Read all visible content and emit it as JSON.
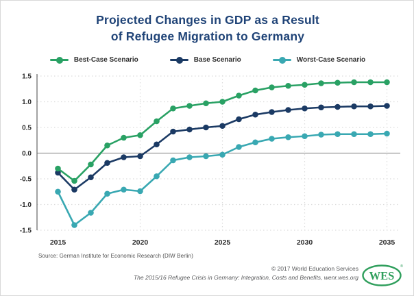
{
  "title": {
    "line1": "Projected Changes in GDP as a Result",
    "line2": "of Refugee Migration to Germany"
  },
  "chart_data": {
    "type": "line",
    "title": "Projected Changes in GDP as a Result of Refugee Migration to Germany",
    "x": [
      2015,
      2016,
      2017,
      2018,
      2019,
      2020,
      2021,
      2022,
      2023,
      2024,
      2025,
      2026,
      2027,
      2028,
      2029,
      2030,
      2031,
      2032,
      2033,
      2034,
      2035
    ],
    "series": [
      {
        "name": "Best-Case Scenario",
        "color": "#29A164",
        "values": [
          -0.3,
          -0.54,
          -0.22,
          0.15,
          0.3,
          0.35,
          0.62,
          0.87,
          0.92,
          0.97,
          1.0,
          1.12,
          1.22,
          1.28,
          1.31,
          1.33,
          1.36,
          1.37,
          1.38,
          1.38,
          1.38
        ]
      },
      {
        "name": "Base Scenario",
        "color": "#1B3A64",
        "values": [
          -0.38,
          -0.71,
          -0.47,
          -0.19,
          -0.08,
          -0.06,
          0.17,
          0.42,
          0.46,
          0.5,
          0.53,
          0.66,
          0.75,
          0.8,
          0.84,
          0.87,
          0.89,
          0.9,
          0.91,
          0.91,
          0.92
        ]
      },
      {
        "name": "Worst-Case Scenario",
        "color": "#39A8B2",
        "values": [
          -0.75,
          -1.4,
          -1.16,
          -0.79,
          -0.71,
          -0.74,
          -0.45,
          -0.14,
          -0.08,
          -0.06,
          -0.03,
          0.12,
          0.21,
          0.28,
          0.31,
          0.33,
          0.36,
          0.37,
          0.37,
          0.37,
          0.38
        ]
      }
    ],
    "xlabel": "",
    "ylabel": "",
    "ylim": [
      -1.5,
      1.5
    ],
    "yticks": [
      1.5,
      1.0,
      0.5,
      0.0,
      -0.5,
      -1.0,
      -1.5
    ],
    "xticks": [
      2015,
      2020,
      2025,
      2030,
      2035
    ],
    "grid": true,
    "legend_position": "top"
  },
  "source": {
    "text": "Source: German Institute for Economic Research (DIW Berlin)"
  },
  "footer": {
    "copyright": "© 2017 World Education Services",
    "citation": "The 2015/16 Refugee Crisis in Germany: Integration, Costs and Benefits, wenr.wes.org",
    "logo_text": "WES",
    "logo_registered": "®"
  },
  "colors": {
    "title_navy": "#1F4377",
    "best_green": "#29A164",
    "base_navy": "#1B3A64",
    "worst_teal": "#39A8B2",
    "zero_line": "#9B9B9B",
    "gridline": "#DCDCDC",
    "logo_green": "#2E9E5B"
  }
}
